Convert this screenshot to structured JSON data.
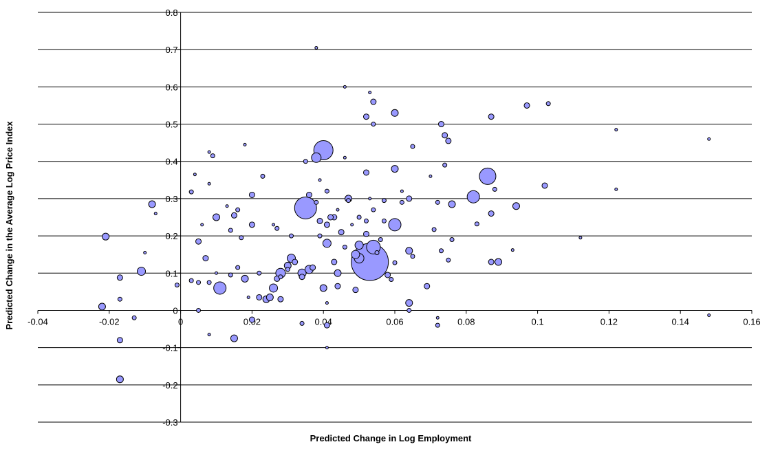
{
  "chart_data": {
    "type": "scatter",
    "title": "",
    "xlabel": "Predicted Change in Log Employment",
    "ylabel": "Predicted Change in the Average Log Price Index",
    "xlim": [
      -0.04,
      0.16
    ],
    "ylim": [
      -0.3,
      0.8
    ],
    "x_ticks": [
      "-0.04",
      "-0.02",
      "0",
      "0.02",
      "0.04",
      "0.06",
      "0.08",
      "0.1",
      "0.12",
      "0.14",
      "0.16"
    ],
    "y_ticks": [
      "-0.3",
      "-0.2",
      "-0.1",
      "0",
      "0.1",
      "0.2",
      "0.3",
      "0.4",
      "0.5",
      "0.6",
      "0.7",
      "0.8"
    ],
    "grid": "horizontal",
    "legend": "none",
    "colors": {
      "bubble_fill": "#9999ff",
      "bubble_stroke": "#000000",
      "gridline": "#000000",
      "axis": "#000000"
    },
    "encoding": "bubble size proportional to a weight (size value in relative units)",
    "points": [
      {
        "x": 0.053,
        "y": 0.13,
        "s": 27
      },
      {
        "x": 0.04,
        "y": 0.43,
        "s": 14
      },
      {
        "x": 0.035,
        "y": 0.275,
        "s": 16
      },
      {
        "x": 0.086,
        "y": 0.36,
        "s": 12
      },
      {
        "x": 0.054,
        "y": 0.17,
        "s": 10
      },
      {
        "x": 0.082,
        "y": 0.305,
        "s": 9
      },
      {
        "x": 0.06,
        "y": 0.23,
        "s": 9
      },
      {
        "x": 0.011,
        "y": 0.06,
        "s": 9
      },
      {
        "x": 0.038,
        "y": 0.41,
        "s": 7
      },
      {
        "x": 0.046,
        "y": 0.6,
        "s": 2
      },
      {
        "x": 0.028,
        "y": 0.1,
        "s": 7
      },
      {
        "x": 0.031,
        "y": 0.14,
        "s": 6
      },
      {
        "x": 0.034,
        "y": 0.1,
        "s": 6
      },
      {
        "x": 0.041,
        "y": 0.18,
        "s": 6
      },
      {
        "x": 0.044,
        "y": 0.1,
        "s": 5
      },
      {
        "x": 0.05,
        "y": 0.175,
        "s": 6
      },
      {
        "x": 0.05,
        "y": 0.14,
        "s": 7
      },
      {
        "x": 0.049,
        "y": 0.15,
        "s": 6
      },
      {
        "x": 0.026,
        "y": 0.06,
        "s": 6
      },
      {
        "x": 0.024,
        "y": 0.03,
        "s": 5
      },
      {
        "x": 0.015,
        "y": -0.075,
        "s": 5
      },
      {
        "x": -0.011,
        "y": 0.105,
        "s": 6
      },
      {
        "x": -0.021,
        "y": 0.198,
        "s": 5
      },
      {
        "x": -0.022,
        "y": 0.01,
        "s": 5
      },
      {
        "x": -0.017,
        "y": -0.185,
        "s": 5
      },
      {
        "x": -0.017,
        "y": -0.08,
        "s": 4
      },
      {
        "x": -0.017,
        "y": 0.088,
        "s": 4
      },
      {
        "x": -0.008,
        "y": 0.285,
        "s": 5
      },
      {
        "x": 0.02,
        "y": 0.31,
        "s": 4
      },
      {
        "x": 0.036,
        "y": 0.11,
        "s": 6
      },
      {
        "x": 0.04,
        "y": 0.06,
        "s": 5
      },
      {
        "x": 0.041,
        "y": 0.23,
        "s": 4
      },
      {
        "x": 0.047,
        "y": 0.3,
        "s": 5
      },
      {
        "x": 0.052,
        "y": 0.52,
        "s": 4
      },
      {
        "x": 0.054,
        "y": 0.56,
        "s": 4
      },
      {
        "x": 0.06,
        "y": 0.53,
        "s": 5
      },
      {
        "x": 0.06,
        "y": 0.38,
        "s": 5
      },
      {
        "x": 0.064,
        "y": 0.3,
        "s": 4
      },
      {
        "x": 0.064,
        "y": 0.16,
        "s": 5
      },
      {
        "x": 0.064,
        "y": 0.02,
        "s": 5
      },
      {
        "x": 0.069,
        "y": 0.065,
        "s": 4
      },
      {
        "x": 0.073,
        "y": 0.5,
        "s": 4
      },
      {
        "x": 0.074,
        "y": 0.47,
        "s": 4
      },
      {
        "x": 0.075,
        "y": 0.455,
        "s": 4
      },
      {
        "x": 0.074,
        "y": 0.39,
        "s": 3
      },
      {
        "x": 0.076,
        "y": 0.285,
        "s": 5
      },
      {
        "x": 0.087,
        "y": 0.52,
        "s": 4
      },
      {
        "x": 0.087,
        "y": 0.26,
        "s": 4
      },
      {
        "x": 0.089,
        "y": 0.13,
        "s": 5
      },
      {
        "x": 0.087,
        "y": 0.13,
        "s": 4
      },
      {
        "x": 0.094,
        "y": 0.28,
        "s": 5
      },
      {
        "x": 0.097,
        "y": 0.55,
        "s": 4
      },
      {
        "x": 0.102,
        "y": 0.335,
        "s": 4
      },
      {
        "x": 0.103,
        "y": 0.555,
        "s": 3
      },
      {
        "x": 0.122,
        "y": 0.485,
        "s": 2
      },
      {
        "x": 0.122,
        "y": 0.325,
        "s": 2
      },
      {
        "x": 0.112,
        "y": 0.195,
        "s": 2
      },
      {
        "x": 0.148,
        "y": 0.46,
        "s": 2
      },
      {
        "x": 0.148,
        "y": -0.013,
        "s": 2
      },
      {
        "x": 0.093,
        "y": 0.162,
        "s": 2
      },
      {
        "x": 0.088,
        "y": 0.325,
        "s": 3
      },
      {
        "x": 0.083,
        "y": 0.232,
        "s": 3
      },
      {
        "x": 0.076,
        "y": 0.19,
        "s": 3
      },
      {
        "x": 0.075,
        "y": 0.135,
        "s": 3
      },
      {
        "x": 0.073,
        "y": 0.16,
        "s": 3
      },
      {
        "x": 0.071,
        "y": 0.217,
        "s": 3
      },
      {
        "x": 0.072,
        "y": 0.29,
        "s": 3
      },
      {
        "x": 0.07,
        "y": 0.36,
        "s": 2
      },
      {
        "x": 0.065,
        "y": 0.44,
        "s": 3
      },
      {
        "x": 0.065,
        "y": 0.145,
        "s": 3
      },
      {
        "x": 0.064,
        "y": 0.0,
        "s": 3
      },
      {
        "x": 0.072,
        "y": -0.04,
        "s": 3
      },
      {
        "x": 0.072,
        "y": -0.02,
        "s": 2
      },
      {
        "x": 0.062,
        "y": 0.29,
        "s": 3
      },
      {
        "x": 0.062,
        "y": 0.32,
        "s": 2
      },
      {
        "x": 0.059,
        "y": 0.083,
        "s": 3
      },
      {
        "x": 0.058,
        "y": 0.095,
        "s": 4
      },
      {
        "x": 0.06,
        "y": 0.128,
        "s": 3
      },
      {
        "x": 0.056,
        "y": 0.19,
        "s": 3
      },
      {
        "x": 0.057,
        "y": 0.24,
        "s": 3
      },
      {
        "x": 0.057,
        "y": 0.295,
        "s": 3
      },
      {
        "x": 0.054,
        "y": 0.27,
        "s": 3
      },
      {
        "x": 0.053,
        "y": 0.3,
        "s": 2
      },
      {
        "x": 0.053,
        "y": 0.585,
        "s": 2
      },
      {
        "x": 0.054,
        "y": 0.5,
        "s": 3
      },
      {
        "x": 0.052,
        "y": 0.37,
        "s": 4
      },
      {
        "x": 0.052,
        "y": 0.205,
        "s": 4
      },
      {
        "x": 0.052,
        "y": 0.24,
        "s": 3
      },
      {
        "x": 0.05,
        "y": 0.25,
        "s": 3
      },
      {
        "x": 0.049,
        "y": 0.055,
        "s": 4
      },
      {
        "x": 0.047,
        "y": 0.295,
        "s": 3
      },
      {
        "x": 0.046,
        "y": 0.41,
        "s": 2
      },
      {
        "x": 0.046,
        "y": 0.17,
        "s": 3
      },
      {
        "x": 0.045,
        "y": 0.21,
        "s": 4
      },
      {
        "x": 0.044,
        "y": 0.065,
        "s": 4
      },
      {
        "x": 0.043,
        "y": 0.13,
        "s": 4
      },
      {
        "x": 0.043,
        "y": 0.25,
        "s": 4
      },
      {
        "x": 0.042,
        "y": 0.25,
        "s": 4
      },
      {
        "x": 0.041,
        "y": 0.32,
        "s": 3
      },
      {
        "x": 0.041,
        "y": -0.04,
        "s": 4
      },
      {
        "x": 0.041,
        "y": -0.1,
        "s": 2
      },
      {
        "x": 0.041,
        "y": 0.02,
        "s": 2
      },
      {
        "x": 0.039,
        "y": 0.2,
        "s": 3
      },
      {
        "x": 0.039,
        "y": 0.24,
        "s": 4
      },
      {
        "x": 0.038,
        "y": 0.29,
        "s": 3
      },
      {
        "x": 0.037,
        "y": 0.115,
        "s": 4
      },
      {
        "x": 0.036,
        "y": 0.31,
        "s": 4
      },
      {
        "x": 0.035,
        "y": 0.4,
        "s": 3
      },
      {
        "x": 0.034,
        "y": 0.09,
        "s": 4
      },
      {
        "x": 0.034,
        "y": -0.035,
        "s": 3
      },
      {
        "x": 0.032,
        "y": 0.13,
        "s": 4
      },
      {
        "x": 0.03,
        "y": 0.12,
        "s": 5
      },
      {
        "x": 0.028,
        "y": 0.03,
        "s": 4
      },
      {
        "x": 0.027,
        "y": 0.22,
        "s": 3
      },
      {
        "x": 0.026,
        "y": 0.23,
        "s": 2
      },
      {
        "x": 0.025,
        "y": 0.035,
        "s": 5
      },
      {
        "x": 0.023,
        "y": 0.36,
        "s": 3
      },
      {
        "x": 0.022,
        "y": 0.1,
        "s": 3
      },
      {
        "x": 0.022,
        "y": 0.035,
        "s": 4
      },
      {
        "x": 0.02,
        "y": 0.23,
        "s": 4
      },
      {
        "x": 0.02,
        "y": -0.025,
        "s": 4
      },
      {
        "x": 0.019,
        "y": 0.035,
        "s": 2
      },
      {
        "x": 0.018,
        "y": 0.085,
        "s": 5
      },
      {
        "x": 0.018,
        "y": 0.445,
        "s": 2
      },
      {
        "x": 0.017,
        "y": 0.195,
        "s": 3
      },
      {
        "x": 0.016,
        "y": 0.115,
        "s": 3
      },
      {
        "x": 0.016,
        "y": 0.27,
        "s": 3
      },
      {
        "x": 0.015,
        "y": 0.255,
        "s": 4
      },
      {
        "x": 0.014,
        "y": 0.215,
        "s": 3
      },
      {
        "x": 0.014,
        "y": 0.095,
        "s": 3
      },
      {
        "x": 0.013,
        "y": 0.28,
        "s": 2
      },
      {
        "x": 0.01,
        "y": 0.25,
        "s": 5
      },
      {
        "x": 0.01,
        "y": 0.1,
        "s": 2
      },
      {
        "x": 0.009,
        "y": 0.415,
        "s": 3
      },
      {
        "x": 0.008,
        "y": 0.425,
        "s": 2
      },
      {
        "x": 0.008,
        "y": 0.34,
        "s": 2
      },
      {
        "x": 0.008,
        "y": 0.075,
        "s": 3
      },
      {
        "x": 0.008,
        "y": -0.065,
        "s": 2
      },
      {
        "x": 0.007,
        "y": 0.14,
        "s": 4
      },
      {
        "x": 0.006,
        "y": 0.23,
        "s": 2
      },
      {
        "x": 0.005,
        "y": 0.185,
        "s": 4
      },
      {
        "x": 0.005,
        "y": 0.075,
        "s": 3
      },
      {
        "x": 0.005,
        "y": 0.0,
        "s": 3
      },
      {
        "x": 0.004,
        "y": 0.365,
        "s": 2
      },
      {
        "x": 0.003,
        "y": 0.08,
        "s": 3
      },
      {
        "x": 0.003,
        "y": 0.318,
        "s": 3
      },
      {
        "x": -0.001,
        "y": 0.068,
        "s": 3
      },
      {
        "x": -0.007,
        "y": 0.26,
        "s": 2
      },
      {
        "x": -0.01,
        "y": 0.155,
        "s": 2
      },
      {
        "x": -0.013,
        "y": -0.02,
        "s": 3
      },
      {
        "x": -0.017,
        "y": 0.03,
        "s": 3
      },
      {
        "x": 0.038,
        "y": 0.705,
        "s": 2
      },
      {
        "x": 0.03,
        "y": 0.11,
        "s": 3
      },
      {
        "x": 0.028,
        "y": 0.09,
        "s": 3
      },
      {
        "x": 0.027,
        "y": 0.085,
        "s": 4
      },
      {
        "x": 0.031,
        "y": 0.2,
        "s": 3
      },
      {
        "x": 0.048,
        "y": 0.23,
        "s": 2
      },
      {
        "x": 0.055,
        "y": 0.155,
        "s": 3
      },
      {
        "x": 0.044,
        "y": 0.27,
        "s": 2
      },
      {
        "x": 0.039,
        "y": 0.35,
        "s": 2
      }
    ]
  }
}
